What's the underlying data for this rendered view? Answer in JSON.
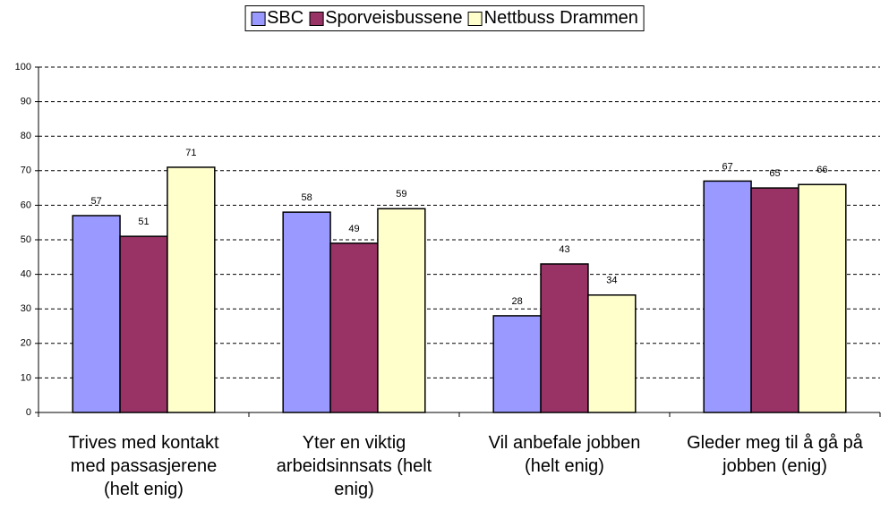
{
  "chart_data": {
    "type": "bar",
    "categories": [
      "Trives med kontakt med passasjerene (helt enig)",
      "Yter en viktig arbeidsinnsats (helt enig)",
      "Vil anbefale jobben (helt enig)",
      "Gleder meg til å gå på jobben (enig)"
    ],
    "series": [
      {
        "name": "SBC",
        "color": "#9999ff",
        "values": [
          57,
          58,
          28,
          67
        ]
      },
      {
        "name": "Sporveisbussene",
        "color": "#993366",
        "values": [
          51,
          49,
          43,
          65
        ]
      },
      {
        "name": "Nettbuss Drammen",
        "color": "#ffffcc",
        "values": [
          71,
          59,
          34,
          66
        ]
      }
    ],
    "ylim": [
      0,
      100
    ],
    "yticks": [
      0,
      10,
      20,
      30,
      40,
      50,
      60,
      70,
      80,
      90,
      100
    ],
    "grid": true,
    "legend": "top"
  }
}
